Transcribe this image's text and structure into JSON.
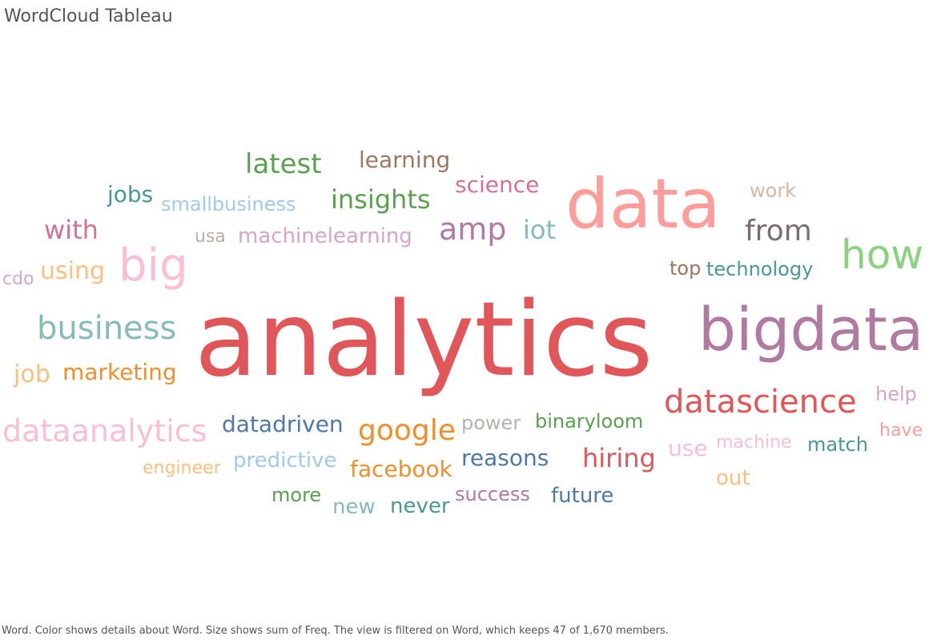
{
  "title": "WordCloud Tableau",
  "caption": "Word.  Color shows details about Word.  Size shows sum of Freq. The view is filtered on Word, which keeps 47 of 1,670 members.",
  "chart_data": {
    "type": "wordcloud",
    "size_measure": "sum of Freq",
    "color_measure": "Word",
    "words": [
      {
        "text": "analytics",
        "color": "#e15759"
      },
      {
        "text": "data",
        "color": "#ff9d9a"
      },
      {
        "text": "bigdata",
        "color": "#b07aa1"
      },
      {
        "text": "how",
        "color": "#8cd17d"
      },
      {
        "text": "big",
        "color": "#fabfd2"
      },
      {
        "text": "datascience",
        "color": "#e15759"
      },
      {
        "text": "business",
        "color": "#86bcb6"
      },
      {
        "text": "dataanalytics",
        "color": "#fabfd2"
      },
      {
        "text": "amp",
        "color": "#b07aa1"
      },
      {
        "text": "google",
        "color": "#f28e2b"
      },
      {
        "text": "from",
        "color": "#79706e"
      },
      {
        "text": "latest",
        "color": "#59a14f"
      },
      {
        "text": "insights",
        "color": "#59a14f"
      },
      {
        "text": "iot",
        "color": "#86bcb6"
      },
      {
        "text": "with",
        "color": "#d37295"
      },
      {
        "text": "hiring",
        "color": "#e15759"
      },
      {
        "text": "reasons",
        "color": "#4e79a7"
      },
      {
        "text": "datadriven",
        "color": "#4e79a7"
      },
      {
        "text": "job",
        "color": "#ffbe7d"
      },
      {
        "text": "using",
        "color": "#ffbe7d"
      },
      {
        "text": "facebook",
        "color": "#f28e2b"
      },
      {
        "text": "marketing",
        "color": "#f28e2b"
      },
      {
        "text": "science",
        "color": "#d37295"
      },
      {
        "text": "jobs",
        "color": "#499894"
      },
      {
        "text": "learning",
        "color": "#9d7660"
      },
      {
        "text": "predictive",
        "color": "#a0cbe8"
      },
      {
        "text": "new",
        "color": "#86bcb6"
      },
      {
        "text": "never",
        "color": "#499894"
      },
      {
        "text": "future",
        "color": "#4e79a7"
      },
      {
        "text": "machinelearning",
        "color": "#d4a6c8"
      },
      {
        "text": "binaryloom",
        "color": "#59a14f"
      },
      {
        "text": "technology",
        "color": "#499894"
      },
      {
        "text": "use",
        "color": "#fabfd2"
      },
      {
        "text": "match",
        "color": "#499894"
      },
      {
        "text": "more",
        "color": "#59a14f"
      },
      {
        "text": "out",
        "color": "#ffbe7d"
      },
      {
        "text": "success",
        "color": "#b07aa1"
      },
      {
        "text": "help",
        "color": "#d4a6c8"
      },
      {
        "text": "power",
        "color": "#bab0ac"
      },
      {
        "text": "work",
        "color": "#d7b5a6"
      },
      {
        "text": "top",
        "color": "#9d7660"
      },
      {
        "text": "smallbusiness",
        "color": "#a0cbe8"
      },
      {
        "text": "have",
        "color": "#ff9d9a"
      },
      {
        "text": "usa",
        "color": "#bab0ac"
      },
      {
        "text": "engineer",
        "color": "#ffbe7d"
      },
      {
        "text": "machine",
        "color": "#fabfd2"
      },
      {
        "text": "cdo",
        "color": "#d4a6c8"
      }
    ]
  }
}
